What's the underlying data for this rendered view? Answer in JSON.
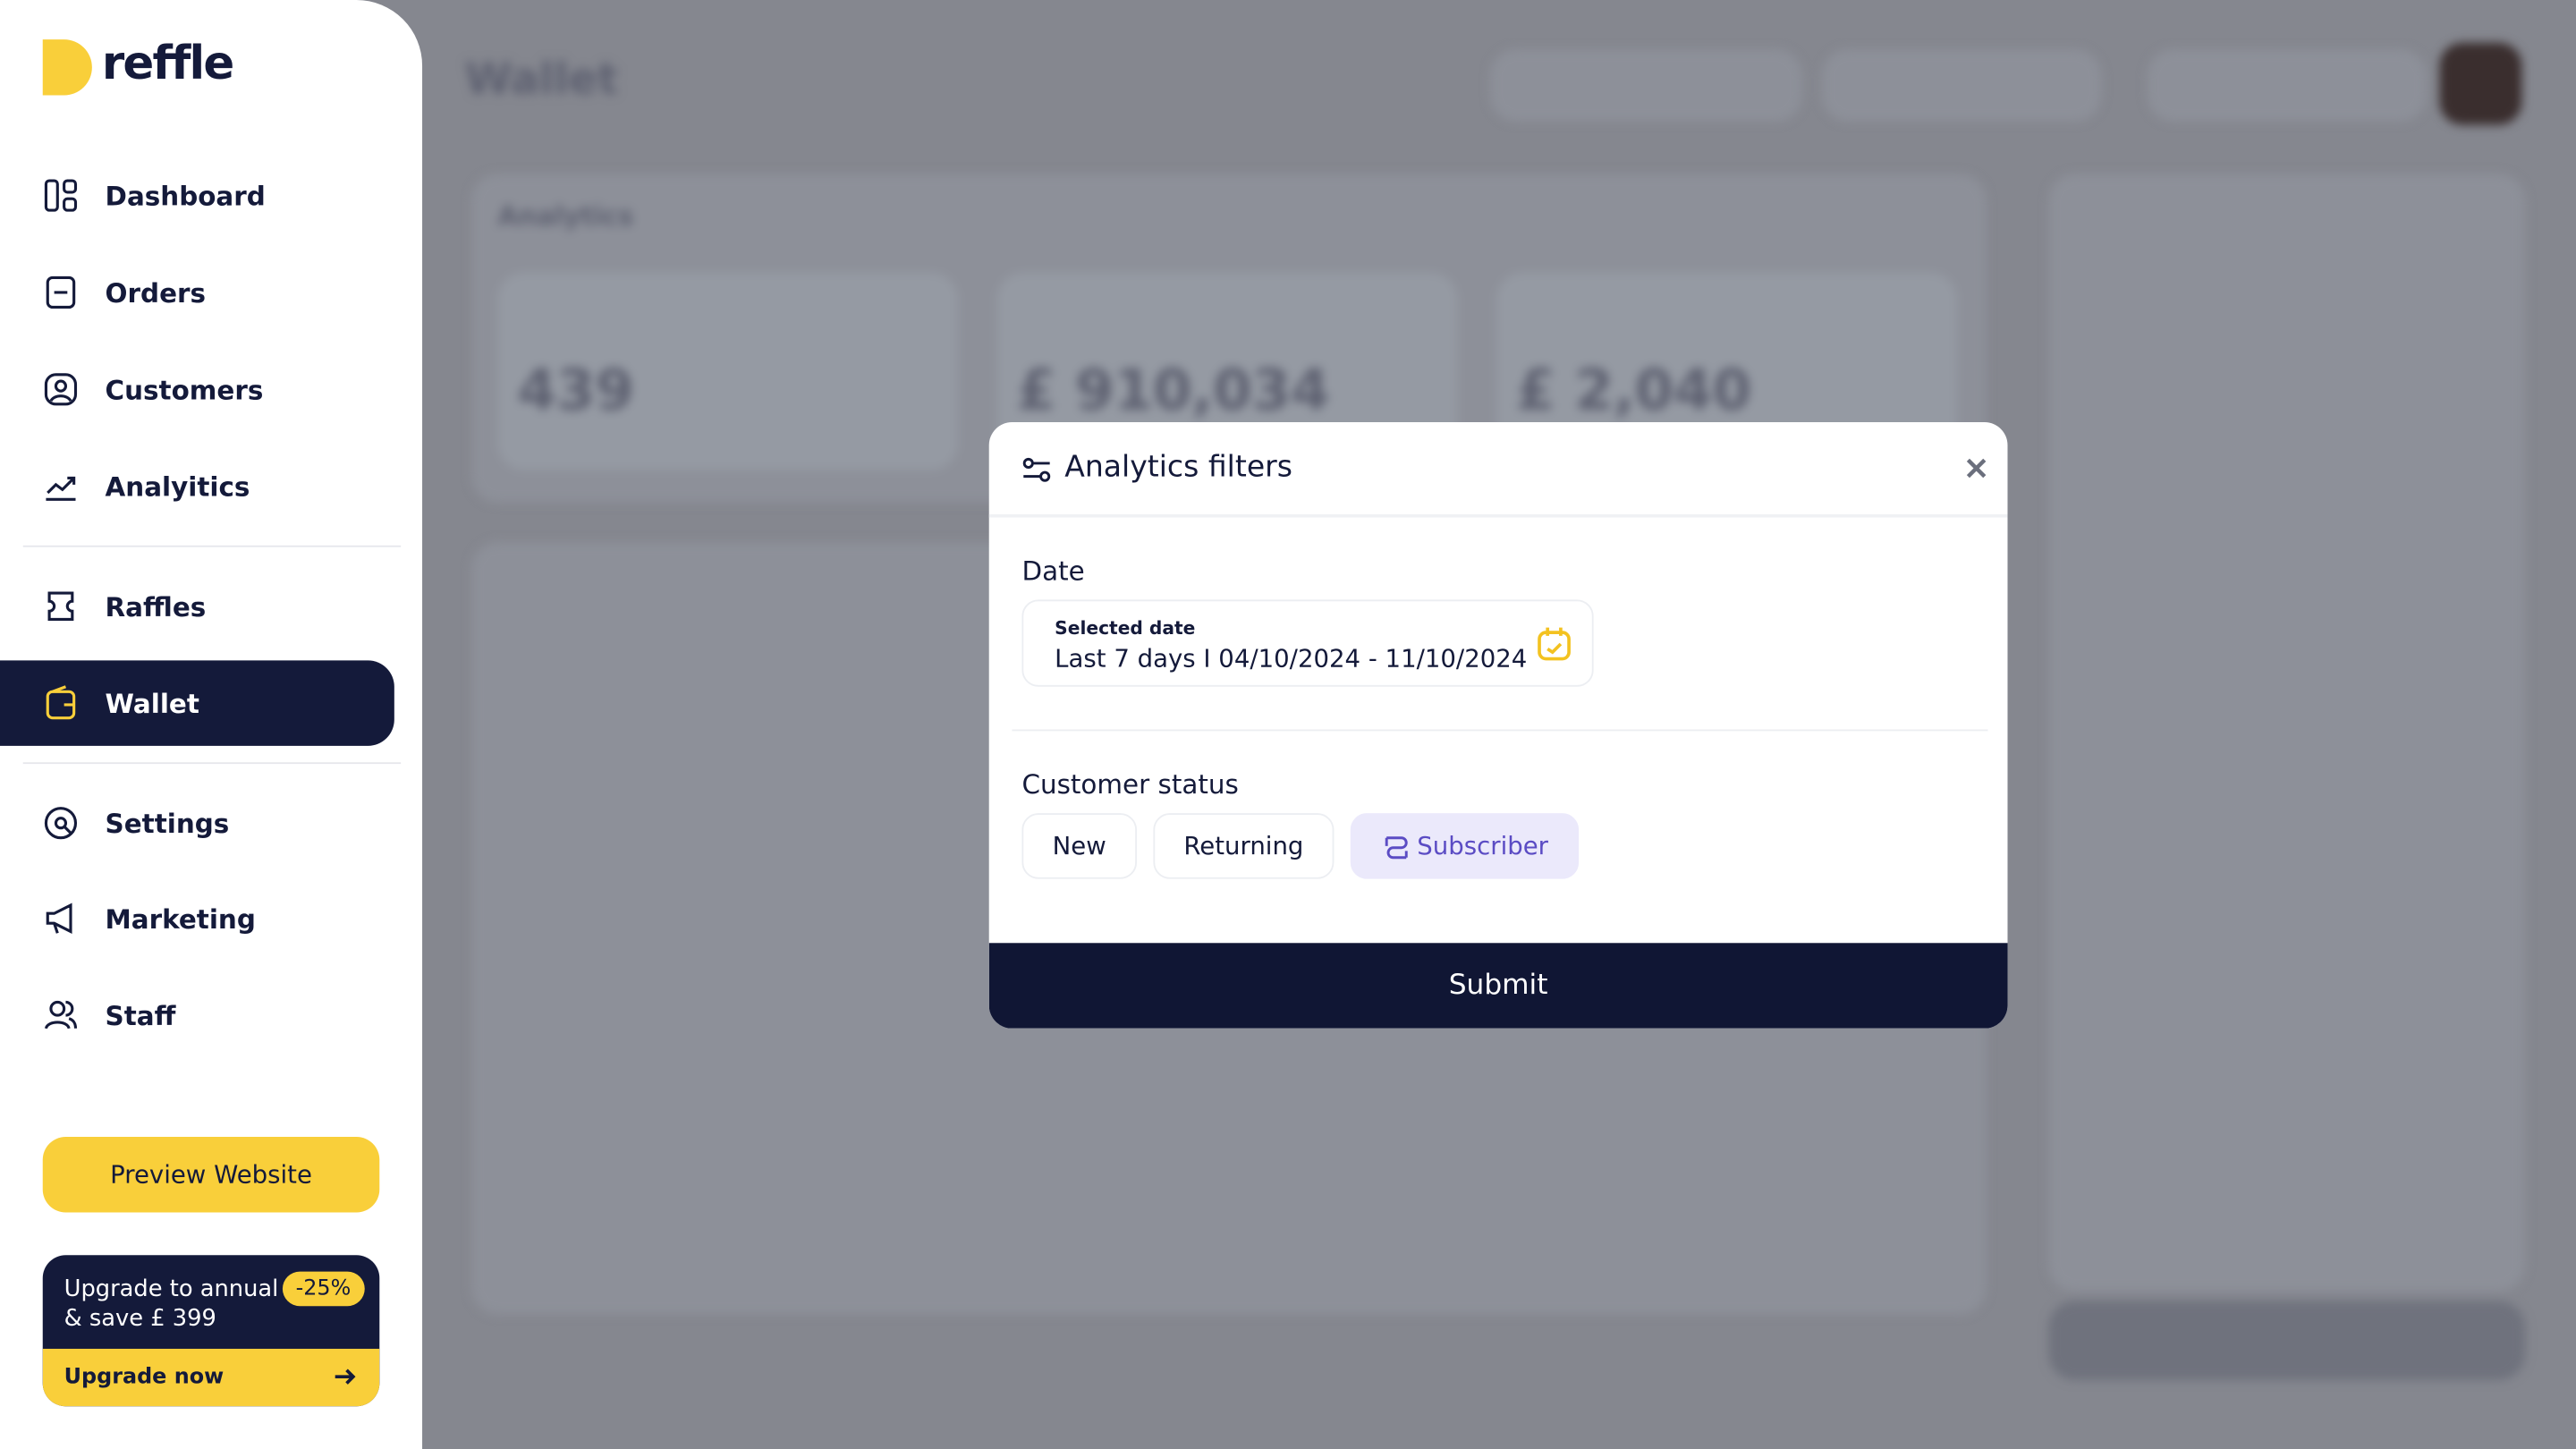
{
  "sidebar": {
    "logo": "reffle",
    "nav": [
      "Dashboard",
      "Orders",
      "Customers",
      "Analyitics",
      "Raffles",
      "Wallet",
      "Settings",
      "Marketing",
      "Staff"
    ],
    "active": "Wallet",
    "preview_button": "Preview Website",
    "upgrade": {
      "title": "Upgrade to annual",
      "subtitle": "& save £ 399",
      "badge": "-25%",
      "action": "Upgrade now"
    }
  },
  "background": {
    "title": "Wallet",
    "section": "Analytics",
    "stats": [
      "439",
      "£ 910,034",
      "£ 2,040"
    ]
  },
  "modal": {
    "title": "Analytics filters",
    "date_label": "Date",
    "date_field_label": "Selected date",
    "date_value": "Last 7 days I 04/10/2024 - 11/10/2024",
    "status_label": "Customer status",
    "status_options": [
      "New",
      "Returning",
      "Subscriber"
    ],
    "selected_status": "Subscriber",
    "submit": "Submit"
  }
}
